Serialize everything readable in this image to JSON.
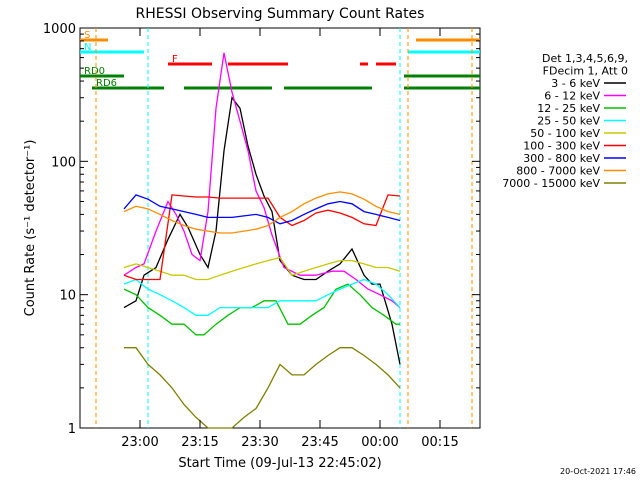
{
  "chart_data": {
    "type": "line",
    "title": "RHESSI Observing Summary Count Rates",
    "xlabel": "Start Time (09-Jul-13 22:45:02)",
    "ylabel": "Count Rate (s⁻¹ detector⁻¹)",
    "y_scale": "log",
    "ylim": [
      1,
      1000
    ],
    "xlim": [
      "22:45",
      "00:25"
    ],
    "x_ticks": [
      "23:00",
      "23:15",
      "23:30",
      "23:45",
      "00:00",
      "00:15"
    ],
    "y_ticks": [
      "1",
      "10",
      "100",
      "1000"
    ],
    "grid": false,
    "legend_position": "right",
    "legend_header": [
      "Det 1,3,4,5,6,9,",
      "FDecim 1, Att 0"
    ],
    "series": [
      {
        "name": "3 - 6 keV",
        "color": "#000000",
        "x": [
          "22:56",
          "22:59",
          "23:01",
          "23:04",
          "23:07",
          "23:10",
          "23:12",
          "23:15",
          "23:17",
          "23:19",
          "23:21",
          "23:23",
          "23:25",
          "23:27",
          "23:29",
          "23:31",
          "23:33",
          "23:35",
          "23:38",
          "23:41",
          "23:44",
          "23:47",
          "23:50",
          "23:53",
          "23:56",
          "23:58",
          "00:00",
          "00:03",
          "00:05"
        ],
        "y": [
          8,
          9,
          14,
          16,
          26,
          40,
          32,
          20,
          16,
          30,
          120,
          300,
          250,
          130,
          80,
          55,
          42,
          18,
          14,
          13,
          13,
          15,
          17,
          22,
          14,
          12,
          12,
          6,
          3
        ]
      },
      {
        "name": "6 - 12 keV",
        "color": "#ff00ff",
        "x": [
          "22:56",
          "22:59",
          "23:01",
          "23:04",
          "23:07",
          "23:09",
          "23:11",
          "23:13",
          "23:15",
          "23:17",
          "23:19",
          "23:21",
          "23:23",
          "23:25",
          "23:27",
          "23:29",
          "23:31",
          "23:33",
          "23:36",
          "23:40",
          "23:44",
          "23:48",
          "23:51",
          "23:54",
          "23:57",
          "00:00",
          "00:03",
          "00:05"
        ],
        "y": [
          14,
          16,
          17,
          30,
          50,
          40,
          30,
          20,
          18,
          42,
          250,
          650,
          330,
          200,
          120,
          60,
          45,
          28,
          16,
          14,
          14,
          15,
          15,
          13,
          11,
          10,
          9,
          8
        ]
      },
      {
        "name": "12 - 25 keV",
        "color": "#00c000",
        "x": [
          "22:56",
          "22:59",
          "23:02",
          "23:05",
          "23:08",
          "23:11",
          "23:14",
          "23:16",
          "23:19",
          "23:22",
          "23:25",
          "23:28",
          "23:31",
          "23:34",
          "23:37",
          "23:40",
          "23:43",
          "23:46",
          "23:49",
          "23:52",
          "23:55",
          "23:58",
          "00:01",
          "00:04",
          "00:05"
        ],
        "y": [
          11,
          10,
          8,
          7,
          6,
          6,
          5,
          5,
          6,
          7,
          8,
          8,
          9,
          9,
          6,
          6,
          7,
          8,
          11,
          12,
          10,
          8,
          7,
          6,
          6
        ]
      },
      {
        "name": "25 - 50 keV",
        "color": "#00ffff",
        "x": [
          "22:56",
          "22:59",
          "23:02",
          "23:05",
          "23:08",
          "23:11",
          "23:14",
          "23:17",
          "23:20",
          "23:23",
          "23:26",
          "23:29",
          "23:32",
          "23:35",
          "23:38",
          "23:41",
          "23:44",
          "23:47",
          "23:50",
          "23:53",
          "23:56",
          "23:59",
          "00:02",
          "00:05"
        ],
        "y": [
          12,
          13,
          11,
          10,
          9,
          8,
          7,
          7,
          8,
          8,
          8,
          8,
          8,
          9,
          9,
          9,
          9,
          10,
          11,
          12,
          13,
          12,
          10,
          8
        ]
      },
      {
        "name": "50 - 100 keV",
        "color": "#c8c800",
        "x": [
          "22:56",
          "22:59",
          "23:02",
          "23:05",
          "23:08",
          "23:11",
          "23:14",
          "23:17",
          "23:20",
          "23:23",
          "23:26",
          "23:29",
          "23:32",
          "23:35",
          "23:38",
          "23:41",
          "23:44",
          "23:47",
          "23:50",
          "23:53",
          "23:56",
          "23:59",
          "00:02",
          "00:05"
        ],
        "y": [
          16,
          17,
          16,
          15,
          14,
          14,
          13,
          13,
          14,
          15,
          16,
          17,
          18,
          19,
          14,
          15,
          16,
          17,
          18,
          18,
          17,
          16,
          16,
          15
        ]
      },
      {
        "name": "100 - 300 keV",
        "color": "#ff0000",
        "x": [
          "22:56",
          "22:59",
          "23:02",
          "23:05",
          "23:08",
          "23:11",
          "23:14",
          "23:17",
          "23:20",
          "23:23",
          "23:26",
          "23:29",
          "23:32",
          "23:35",
          "23:38",
          "23:41",
          "23:44",
          "23:47",
          "23:50",
          "23:53",
          "23:56",
          "23:59",
          "00:02",
          "00:05"
        ],
        "y": [
          14,
          13,
          13,
          13,
          56,
          55,
          54,
          54,
          53,
          53,
          53,
          53,
          53,
          38,
          33,
          36,
          41,
          43,
          41,
          38,
          34,
          33,
          56,
          55
        ]
      },
      {
        "name": "300 - 800 keV",
        "color": "#0000ff",
        "x": [
          "22:56",
          "22:59",
          "23:02",
          "23:05",
          "23:08",
          "23:11",
          "23:14",
          "23:17",
          "23:20",
          "23:23",
          "23:26",
          "23:29",
          "23:32",
          "23:35",
          "23:38",
          "23:41",
          "23:44",
          "23:47",
          "23:50",
          "23:53",
          "23:56",
          "23:59",
          "00:02",
          "00:05"
        ],
        "y": [
          44,
          56,
          52,
          46,
          44,
          42,
          40,
          38,
          38,
          38,
          39,
          40,
          38,
          34,
          36,
          40,
          44,
          48,
          50,
          48,
          42,
          40,
          38,
          36
        ]
      },
      {
        "name": "800 - 7000 keV",
        "color": "#ff8c00",
        "x": [
          "22:56",
          "22:59",
          "23:02",
          "23:05",
          "23:08",
          "23:11",
          "23:14",
          "23:17",
          "23:20",
          "23:23",
          "23:26",
          "23:29",
          "23:32",
          "23:35",
          "23:38",
          "23:41",
          "23:44",
          "23:47",
          "23:50",
          "23:53",
          "23:56",
          "23:59",
          "00:02",
          "00:05"
        ],
        "y": [
          42,
          46,
          44,
          40,
          36,
          33,
          31,
          30,
          29,
          29,
          30,
          31,
          33,
          38,
          42,
          48,
          53,
          57,
          59,
          57,
          52,
          46,
          42,
          40
        ]
      },
      {
        "name": "7000 - 15000 keV",
        "color": "#808000",
        "x": [
          "22:56",
          "22:59",
          "23:02",
          "23:05",
          "23:08",
          "23:11",
          "23:14",
          "23:17",
          "23:20",
          "23:23",
          "23:26",
          "23:29",
          "23:32",
          "23:35",
          "23:38",
          "23:41",
          "23:44",
          "23:47",
          "23:50",
          "23:53",
          "23:56",
          "23:59",
          "00:02",
          "00:05"
        ],
        "y": [
          4,
          4,
          3,
          2.5,
          2,
          1.5,
          1.2,
          1,
          1,
          1,
          1.2,
          1.4,
          2,
          3,
          2.5,
          2.5,
          3,
          3.5,
          4,
          4,
          3.5,
          3,
          2.5,
          2
        ]
      }
    ],
    "flag_bars": [
      {
        "label": "S",
        "color": "#ff8c00",
        "y": 1.0,
        "segments": [
          [
            "22:45",
            "22:52"
          ],
          [
            "00:09",
            "00:25"
          ]
        ]
      },
      {
        "label": "N",
        "color": "#00ffff",
        "y": 0.97,
        "segments": [
          [
            "22:45",
            "23:01"
          ],
          [
            "00:07",
            "00:25"
          ]
        ]
      },
      {
        "label": "F",
        "color": "#ff0000",
        "y": 0.94,
        "segments": [
          [
            "23:07",
            "23:18"
          ],
          [
            "23:22",
            "23:37"
          ],
          [
            "23:55",
            "23:57"
          ],
          [
            "23:59",
            "00:04"
          ]
        ]
      },
      {
        "label": "RD0",
        "color": "#008000",
        "y": 0.91,
        "segments": [
          [
            "22:45",
            "22:56"
          ],
          [
            "00:06",
            "00:25"
          ]
        ]
      },
      {
        "label": "RD6",
        "color": "#008000",
        "y": 0.88,
        "segments": [
          [
            "22:48",
            "23:06"
          ],
          [
            "23:11",
            "23:33"
          ],
          [
            "23:36",
            "23:58"
          ],
          [
            "00:06",
            "00:25"
          ]
        ]
      }
    ],
    "vertical_markers": [
      {
        "x": "22:49",
        "color": "#ff8c00"
      },
      {
        "x": "23:02",
        "color": "#00ffff"
      },
      {
        "x": "00:05",
        "color": "#00ffff"
      },
      {
        "x": "00:07",
        "color": "#ff8c00"
      },
      {
        "x": "00:23",
        "color": "#ff8c00"
      }
    ],
    "footer_date": "20-Oct-2021 17:46"
  }
}
